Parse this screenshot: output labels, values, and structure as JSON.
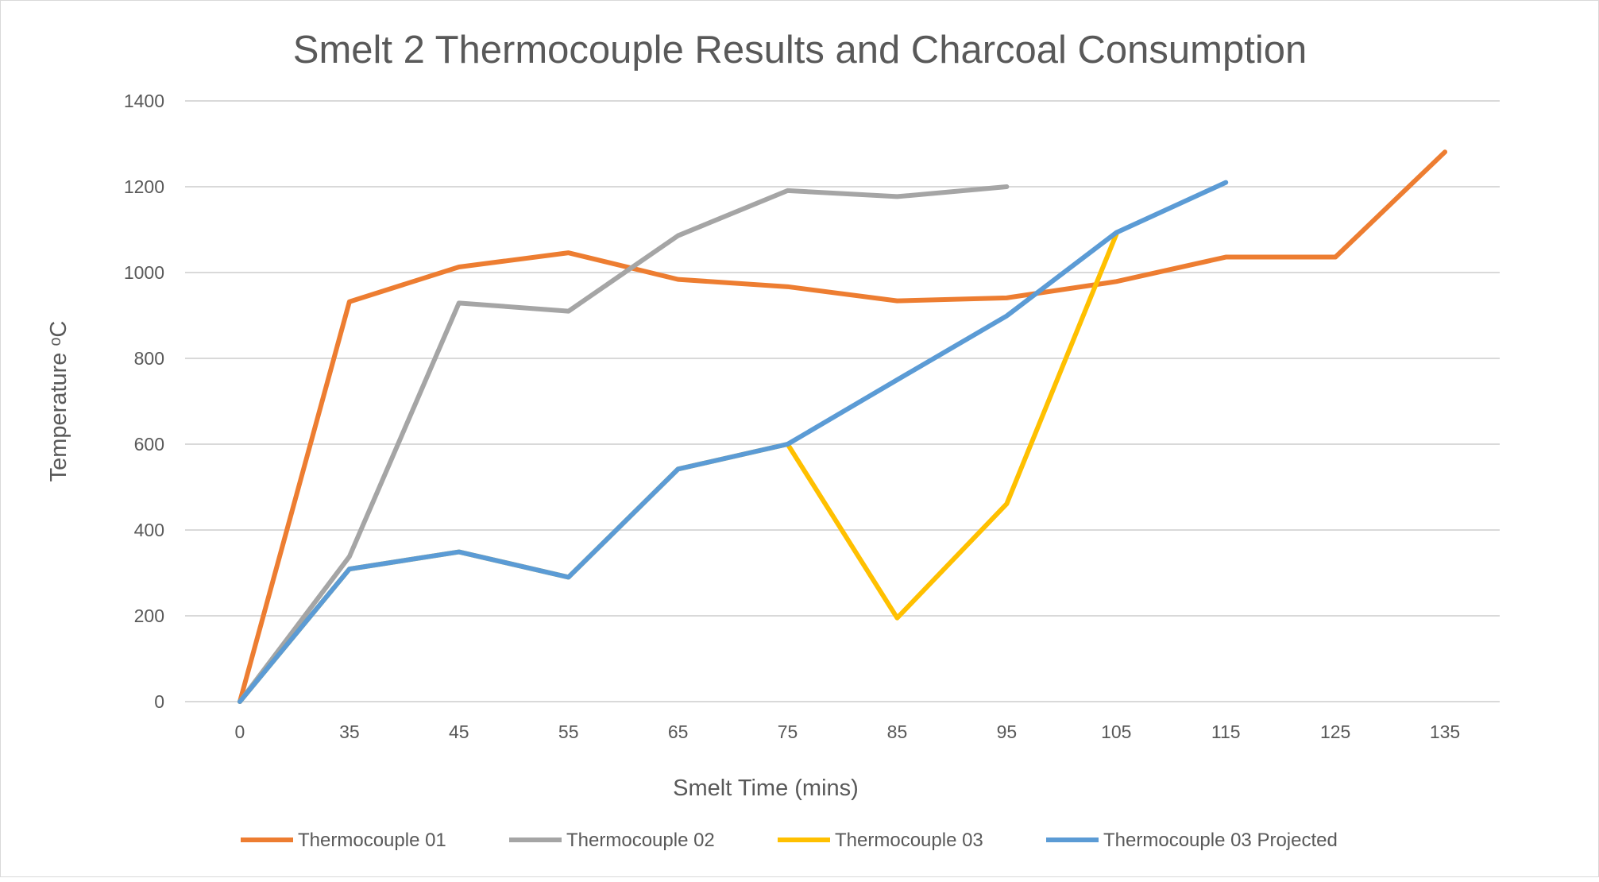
{
  "chart_data": {
    "type": "line",
    "title": "Smelt 2 Thermocouple Results and Charcoal Consumption",
    "xlabel": "Smelt Time (mins)",
    "ylabel": "Temperature ᵒC",
    "categories": [
      "0",
      "35",
      "45",
      "55",
      "65",
      "75",
      "85",
      "95",
      "105",
      "115",
      "125",
      "135"
    ],
    "ylim": [
      0,
      1400
    ],
    "yticks": [
      0,
      200,
      400,
      600,
      800,
      1000,
      1200,
      1400
    ],
    "grid": true,
    "legend_position": "bottom",
    "series": [
      {
        "name": "Thermocouple 01",
        "color": "#ED7D31",
        "values": [
          0,
          932,
          1013,
          1046,
          984,
          967,
          934,
          941,
          979,
          1036,
          1036,
          1281
        ]
      },
      {
        "name": "Thermocouple 02",
        "color": "#A5A5A5",
        "values": [
          0,
          338,
          929,
          910,
          1086,
          1191,
          1177,
          1200,
          null,
          null,
          null,
          null
        ]
      },
      {
        "name": "Thermocouple 03",
        "color": "#FFC000",
        "values": [
          0,
          309,
          349,
          290,
          542,
          600,
          195,
          461,
          1089,
          null,
          null,
          null
        ]
      },
      {
        "name": "Thermocouple 03 Projected",
        "color": "#5B9BD5",
        "values": [
          0,
          309,
          349,
          290,
          542,
          600,
          750,
          899,
          1093,
          1210,
          null,
          null
        ]
      }
    ]
  }
}
